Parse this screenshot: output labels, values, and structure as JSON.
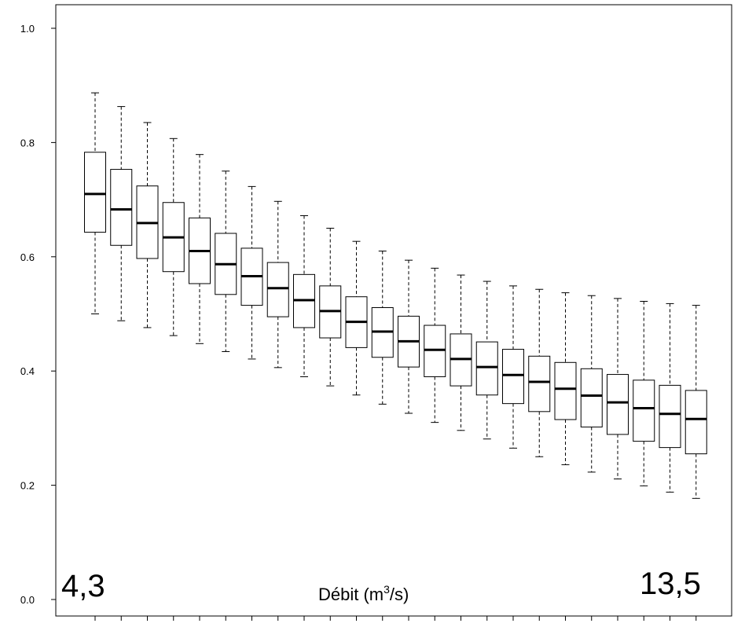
{
  "chart_data": {
    "type": "boxplot",
    "title": "",
    "xlabel": "Débit (m³/s)",
    "xlabel_main": "Débit (m",
    "xlabel_sup": "3",
    "xlabel_end": "/s)",
    "x_start_label": "4,3",
    "x_end_label": "13,5",
    "ylabel": "",
    "ylim": [
      0,
      1.04
    ],
    "yticks": [
      0.0,
      0.2,
      0.4,
      0.6,
      0.8,
      1.0
    ],
    "ytick_labels": [
      "0.0",
      "0.2",
      "0.4",
      "0.6",
      "0.8",
      "1.0"
    ],
    "grid": false,
    "boxes": [
      {
        "whislo": 0.5,
        "q1": 0.643,
        "med": 0.71,
        "q3": 0.783,
        "whishi": 0.887
      },
      {
        "whislo": 0.488,
        "q1": 0.62,
        "med": 0.683,
        "q3": 0.753,
        "whishi": 0.863
      },
      {
        "whislo": 0.476,
        "q1": 0.597,
        "med": 0.659,
        "q3": 0.724,
        "whishi": 0.835
      },
      {
        "whislo": 0.462,
        "q1": 0.574,
        "med": 0.634,
        "q3": 0.695,
        "whishi": 0.807
      },
      {
        "whislo": 0.448,
        "q1": 0.553,
        "med": 0.61,
        "q3": 0.668,
        "whishi": 0.779
      },
      {
        "whislo": 0.434,
        "q1": 0.534,
        "med": 0.587,
        "q3": 0.641,
        "whishi": 0.75
      },
      {
        "whislo": 0.421,
        "q1": 0.515,
        "med": 0.566,
        "q3": 0.615,
        "whishi": 0.723
      },
      {
        "whislo": 0.406,
        "q1": 0.495,
        "med": 0.545,
        "q3": 0.59,
        "whishi": 0.697
      },
      {
        "whislo": 0.39,
        "q1": 0.476,
        "med": 0.524,
        "q3": 0.569,
        "whishi": 0.672
      },
      {
        "whislo": 0.374,
        "q1": 0.458,
        "med": 0.505,
        "q3": 0.549,
        "whishi": 0.65
      },
      {
        "whislo": 0.358,
        "q1": 0.441,
        "med": 0.486,
        "q3": 0.53,
        "whishi": 0.627
      },
      {
        "whislo": 0.342,
        "q1": 0.424,
        "med": 0.469,
        "q3": 0.511,
        "whishi": 0.61
      },
      {
        "whislo": 0.326,
        "q1": 0.407,
        "med": 0.452,
        "q3": 0.496,
        "whishi": 0.594
      },
      {
        "whislo": 0.31,
        "q1": 0.39,
        "med": 0.437,
        "q3": 0.48,
        "whishi": 0.58
      },
      {
        "whislo": 0.296,
        "q1": 0.374,
        "med": 0.421,
        "q3": 0.465,
        "whishi": 0.568
      },
      {
        "whislo": 0.281,
        "q1": 0.358,
        "med": 0.407,
        "q3": 0.451,
        "whishi": 0.557
      },
      {
        "whislo": 0.265,
        "q1": 0.343,
        "med": 0.393,
        "q3": 0.438,
        "whishi": 0.549
      },
      {
        "whislo": 0.25,
        "q1": 0.329,
        "med": 0.381,
        "q3": 0.426,
        "whishi": 0.543
      },
      {
        "whislo": 0.236,
        "q1": 0.315,
        "med": 0.369,
        "q3": 0.415,
        "whishi": 0.537
      },
      {
        "whislo": 0.223,
        "q1": 0.302,
        "med": 0.357,
        "q3": 0.404,
        "whishi": 0.532
      },
      {
        "whislo": 0.211,
        "q1": 0.289,
        "med": 0.345,
        "q3": 0.394,
        "whishi": 0.527
      },
      {
        "whislo": 0.199,
        "q1": 0.277,
        "med": 0.335,
        "q3": 0.384,
        "whishi": 0.522
      },
      {
        "whislo": 0.188,
        "q1": 0.266,
        "med": 0.325,
        "q3": 0.375,
        "whishi": 0.518
      },
      {
        "whislo": 0.177,
        "q1": 0.255,
        "med": 0.316,
        "q3": 0.366,
        "whishi": 0.515
      }
    ]
  }
}
